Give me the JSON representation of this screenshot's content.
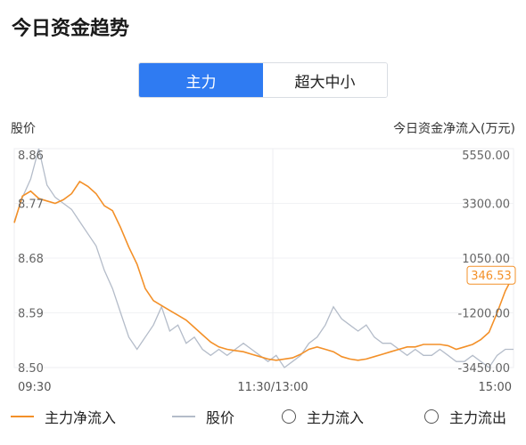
{
  "title": "今日资金趋势",
  "tabs": [
    {
      "label": "主力",
      "active": true
    },
    {
      "label": "超大中小",
      "active": false
    }
  ],
  "left_axis_label": "股价",
  "right_axis_label": "今日资金净流入(万元)",
  "colors": {
    "accent": "#2f7bf2",
    "net_flow": "#f39028",
    "price": "#b4bcc9"
  },
  "legend": [
    {
      "label": "主力净流入",
      "type": "line",
      "color": "#f39028"
    },
    {
      "label": "股价",
      "type": "line",
      "color": "#b4bcc9"
    },
    {
      "label": "主力流入",
      "type": "circle",
      "icon": "radio-circle-icon"
    },
    {
      "label": "主力流出",
      "type": "circle",
      "icon": "radio-circle-icon"
    }
  ],
  "chart_data": {
    "type": "line",
    "x_ticks": [
      "09:30",
      "11:30/13:00",
      "15:00"
    ],
    "left_ticks": [
      "8.86",
      "8.77",
      "8.68",
      "8.59",
      "8.50"
    ],
    "right_ticks": [
      "5550.00",
      "3300.00",
      "1050.00",
      "-1200.00",
      "-3450.00"
    ],
    "last_value_label": "346.53",
    "left_range": [
      8.5,
      8.86
    ],
    "right_range": [
      -3450,
      5550
    ],
    "series": [
      {
        "name": "主力净流入",
        "axis": "right",
        "values": [
          2500,
          3600,
          3800,
          3500,
          3400,
          3300,
          3450,
          3700,
          4200,
          4000,
          3700,
          3200,
          3000,
          2300,
          1500,
          800,
          -200,
          -700,
          -900,
          -1100,
          -1300,
          -1500,
          -1800,
          -2100,
          -2400,
          -2600,
          -2700,
          -2750,
          -2800,
          -2900,
          -3000,
          -3100,
          -3150,
          -3100,
          -3050,
          -2900,
          -2700,
          -2600,
          -2700,
          -2800,
          -3000,
          -3100,
          -3150,
          -3100,
          -3000,
          -2900,
          -2800,
          -2700,
          -2600,
          -2600,
          -2500,
          -2500,
          -2500,
          -2550,
          -2700,
          -2600,
          -2500,
          -2300,
          -2000,
          -1200,
          -300,
          346.53
        ]
      },
      {
        "name": "股价",
        "axis": "left",
        "values": [
          8.74,
          8.78,
          8.81,
          8.86,
          8.8,
          8.78,
          8.77,
          8.76,
          8.74,
          8.72,
          8.7,
          8.66,
          8.63,
          8.59,
          8.55,
          8.53,
          8.55,
          8.57,
          8.6,
          8.56,
          8.57,
          8.54,
          8.55,
          8.53,
          8.52,
          8.53,
          8.52,
          8.53,
          8.54,
          8.53,
          8.52,
          8.51,
          8.52,
          8.5,
          8.51,
          8.52,
          8.54,
          8.55,
          8.57,
          8.6,
          8.58,
          8.57,
          8.56,
          8.57,
          8.55,
          8.54,
          8.54,
          8.53,
          8.52,
          8.53,
          8.52,
          8.52,
          8.53,
          8.52,
          8.51,
          8.51,
          8.52,
          8.51,
          8.5,
          8.52,
          8.53,
          8.53
        ]
      }
    ]
  }
}
